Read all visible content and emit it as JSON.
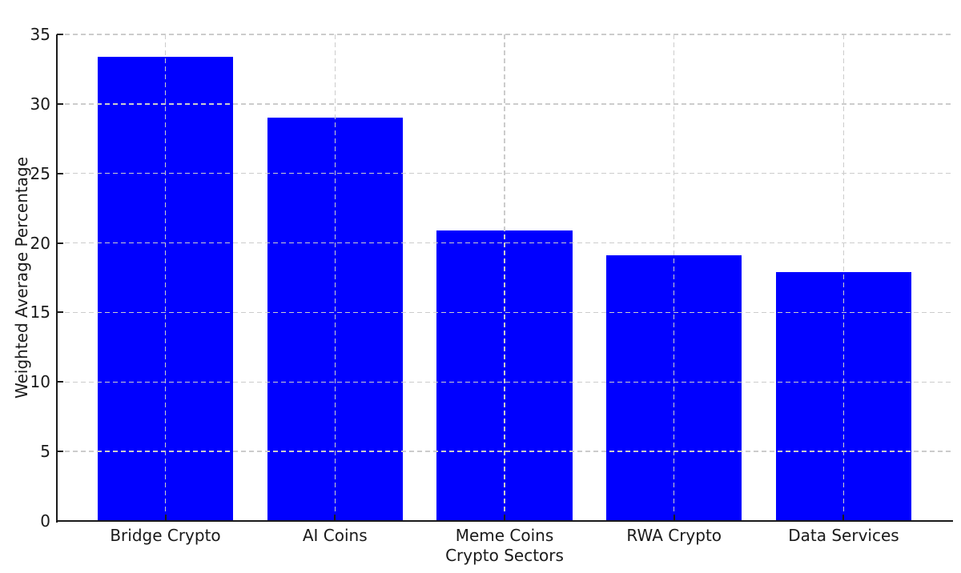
{
  "chart_data": {
    "type": "bar",
    "title": "",
    "xlabel": "Crypto Sectors",
    "ylabel": "Weighted Average Percentage",
    "categories": [
      "Bridge Crypto",
      "AI Coins",
      "Meme Coins",
      "RWA Crypto",
      "Data Services"
    ],
    "values": [
      33.4,
      29.0,
      20.9,
      19.1,
      17.9
    ],
    "ylim": [
      0,
      35
    ],
    "yticks": [
      0,
      5,
      10,
      15,
      20,
      25,
      30,
      35
    ],
    "xlim": [
      -0.64,
      4.64
    ],
    "bar_width": 0.8,
    "grid": "dashed, both axes, drawn above bars",
    "legend": null,
    "colors": {
      "bar": "#0000ff",
      "grid": "#cccccc",
      "axis": "#1a1a1a",
      "text": "#1a1a1a",
      "background": "#ffffff"
    }
  }
}
